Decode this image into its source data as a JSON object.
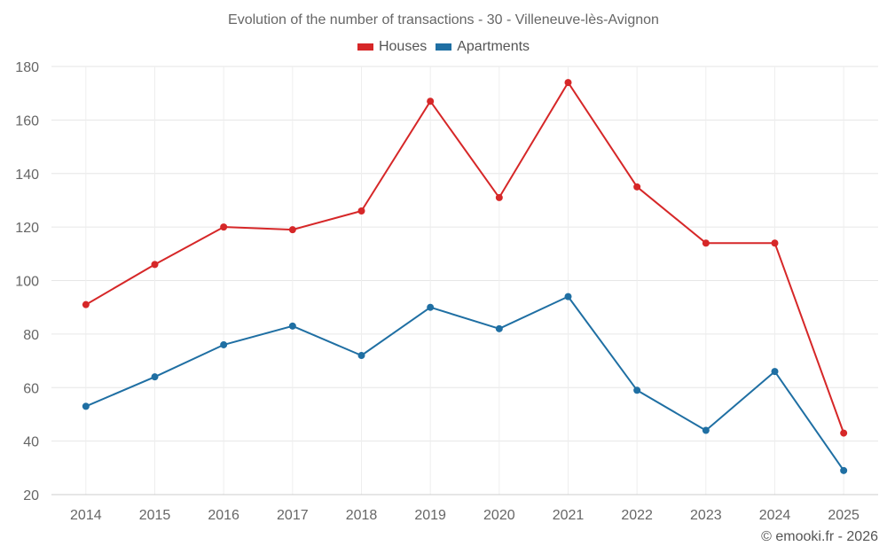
{
  "chart_data": {
    "type": "line",
    "title": "Evolution of the number of transactions - 30 - Villeneuve-lès-Avignon",
    "categories": [
      "2014",
      "2015",
      "2016",
      "2017",
      "2018",
      "2019",
      "2020",
      "2021",
      "2022",
      "2023",
      "2024",
      "2025"
    ],
    "ylim": [
      20,
      180
    ],
    "yticks": [
      20,
      40,
      60,
      80,
      100,
      120,
      140,
      160,
      180
    ],
    "grid": true,
    "legend_position": "top-center",
    "series": [
      {
        "name": "Houses",
        "color": "#d62728",
        "values": [
          91,
          106,
          120,
          119,
          126,
          167,
          131,
          174,
          135,
          114,
          114,
          43
        ]
      },
      {
        "name": "Apartments",
        "color": "#1f6fa3",
        "values": [
          53,
          64,
          76,
          83,
          72,
          90,
          82,
          94,
          59,
          44,
          66,
          29
        ]
      }
    ]
  },
  "footer": {
    "credit": "© emooki.fr - 2026"
  }
}
